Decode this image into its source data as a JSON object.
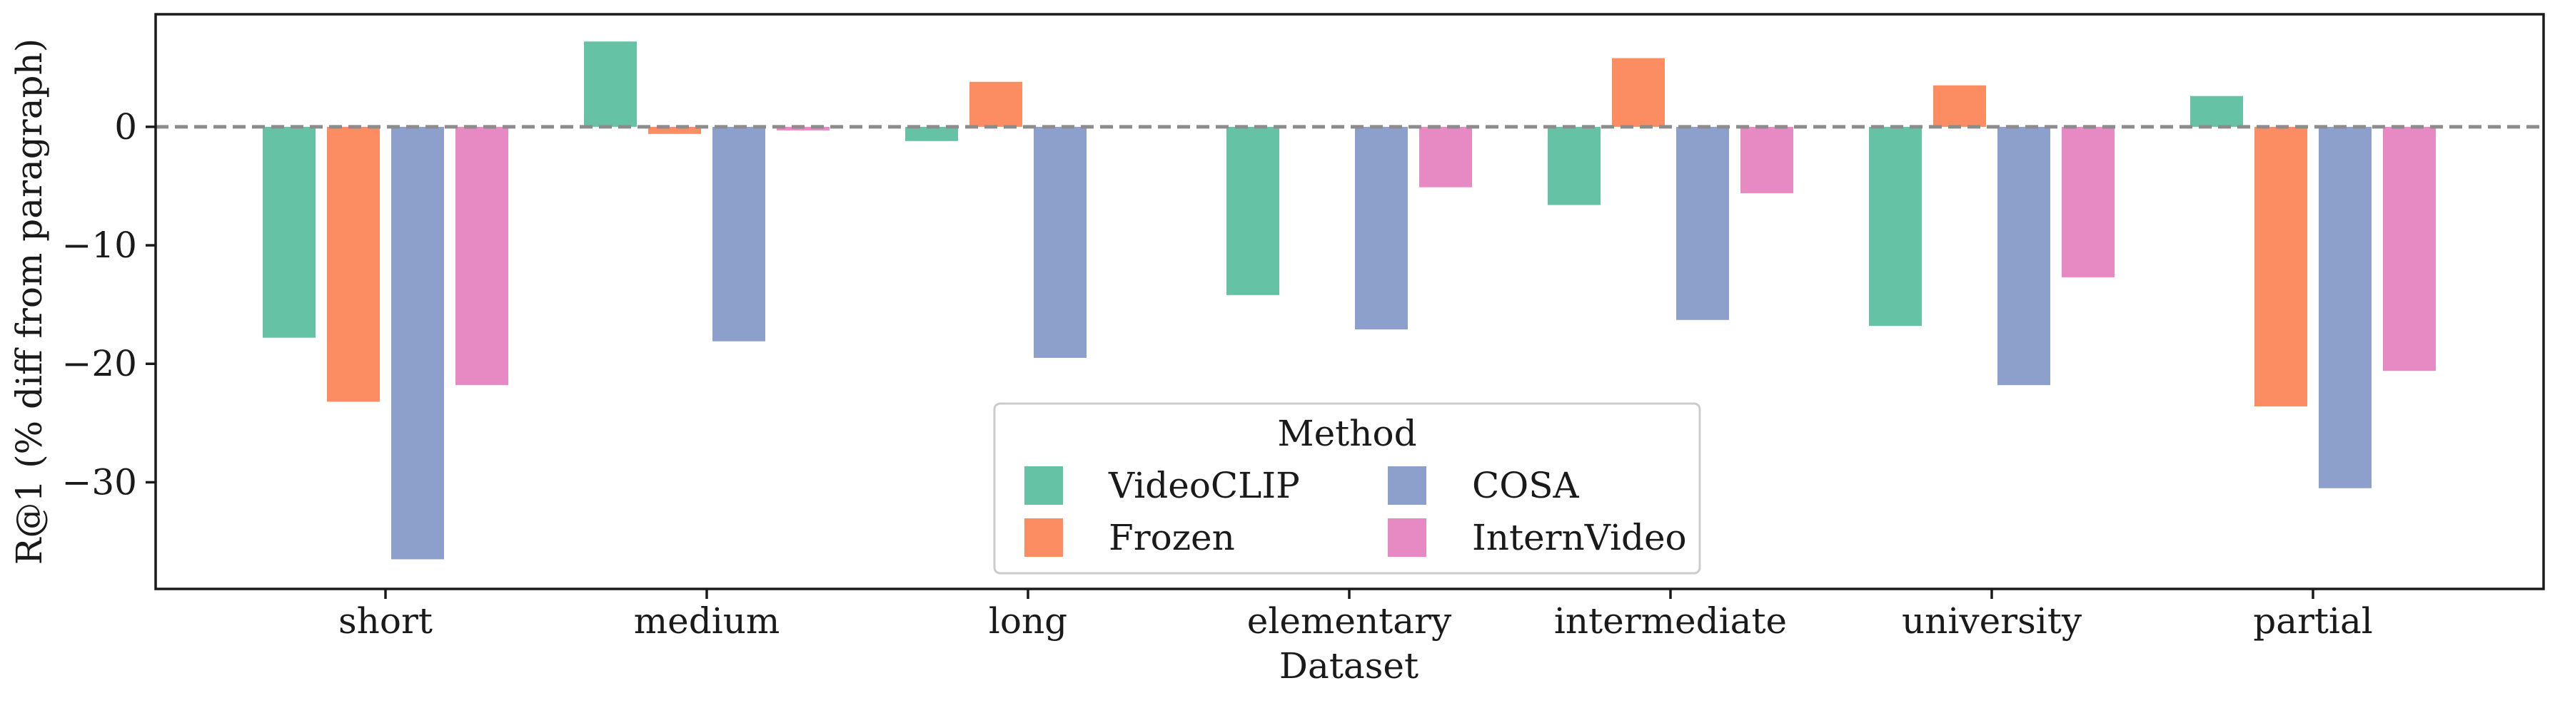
{
  "chart_data": {
    "type": "bar",
    "title": "",
    "xlabel": "Dataset",
    "ylabel": "R@1 (% diff from paragraph)",
    "ylim": [
      -39,
      9.5
    ],
    "yticks": [
      0,
      -10,
      -20,
      -30
    ],
    "ytick_labels": [
      "0",
      "−10",
      "−20",
      "−30"
    ],
    "grid": false,
    "reference_line": {
      "y": 0,
      "style": "dashed",
      "color": "#8c8c8c"
    },
    "categories": [
      "short",
      "medium",
      "long",
      "elementary",
      "intermediate",
      "university",
      "partial"
    ],
    "series": [
      {
        "name": "VideoCLIP",
        "color": "#66c2a5",
        "values": [
          -17.8,
          7.2,
          -1.2,
          -14.2,
          -6.6,
          -16.8,
          2.6
        ]
      },
      {
        "name": "Frozen",
        "color": "#fc8d62",
        "values": [
          -23.2,
          -0.6,
          3.8,
          0,
          5.8,
          3.5,
          -23.6
        ]
      },
      {
        "name": "COSA",
        "color": "#8da0cb",
        "values": [
          -36.5,
          -18.1,
          -19.5,
          -17.1,
          -16.3,
          -21.8,
          -30.5
        ]
      },
      {
        "name": "InternVideo",
        "color": "#e78ac3",
        "values": [
          -21.8,
          -0.3,
          0,
          -5.1,
          -5.6,
          -12.7,
          -20.6
        ]
      }
    ],
    "legend": {
      "title": "Method",
      "placement": "lower-center",
      "columns": 2
    }
  }
}
